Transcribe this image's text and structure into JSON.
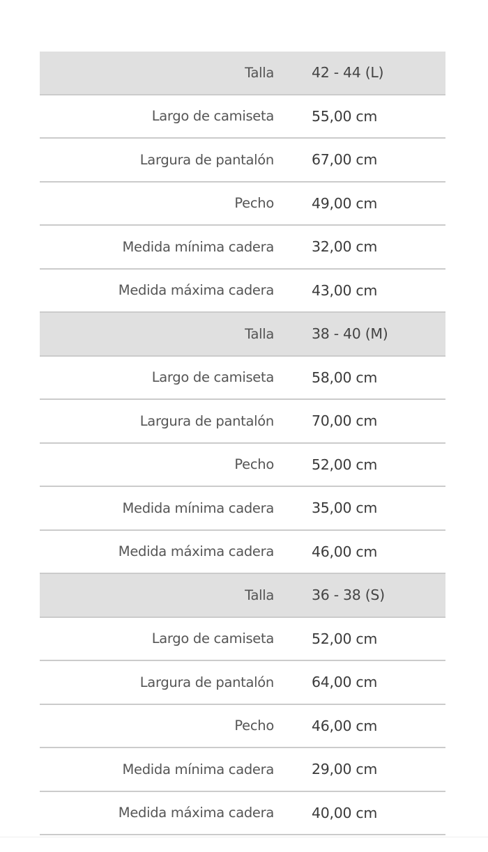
{
  "size_table": {
    "groups": [
      {
        "header": {
          "label": "Talla",
          "value": "42 - 44 (L)"
        },
        "rows": [
          {
            "label": "Largo de camiseta",
            "value": "55,00 cm"
          },
          {
            "label": "Largura de pantalón",
            "value": "67,00 cm"
          },
          {
            "label": "Pecho",
            "value": "49,00 cm"
          },
          {
            "label": "Medida mínima cadera",
            "value": "32,00 cm"
          },
          {
            "label": "Medida máxima cadera",
            "value": "43,00 cm"
          }
        ]
      },
      {
        "header": {
          "label": "Talla",
          "value": "38 - 40 (M)"
        },
        "rows": [
          {
            "label": "Largo de camiseta",
            "value": "58,00 cm"
          },
          {
            "label": "Largura de pantalón",
            "value": "70,00 cm"
          },
          {
            "label": "Pecho",
            "value": "52,00 cm"
          },
          {
            "label": "Medida mínima cadera",
            "value": "35,00 cm"
          },
          {
            "label": "Medida máxima cadera",
            "value": "46,00 cm"
          }
        ]
      },
      {
        "header": {
          "label": "Talla",
          "value": "36 - 38 (S)"
        },
        "rows": [
          {
            "label": "Largo de camiseta",
            "value": "52,00 cm"
          },
          {
            "label": "Largura de pantalón",
            "value": "64,00 cm"
          },
          {
            "label": "Pecho",
            "value": "46,00 cm"
          },
          {
            "label": "Medida mínima cadera",
            "value": "29,00 cm"
          },
          {
            "label": "Medida máxima cadera",
            "value": "40,00 cm"
          }
        ]
      }
    ]
  }
}
